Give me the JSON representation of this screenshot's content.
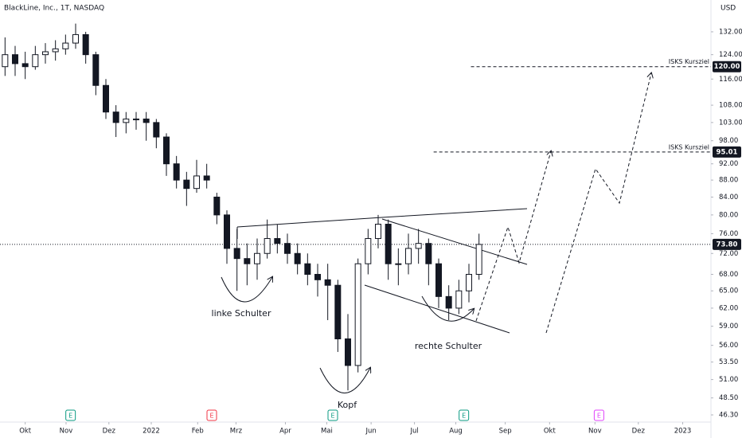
{
  "chart_data": {
    "type": "candlestick",
    "title": "BlackLine, Inc., 1T, NASDAQ",
    "currency": "USD",
    "x": [
      0,
      1,
      2,
      3,
      4,
      5,
      6,
      7,
      8,
      9,
      10,
      11,
      12,
      13,
      14,
      15,
      16,
      17,
      18,
      19,
      20,
      21,
      22,
      23,
      24,
      25,
      26,
      27,
      28,
      29,
      30,
      31,
      32,
      33,
      34,
      35,
      36,
      37,
      38,
      39,
      40,
      41,
      42,
      43,
      44,
      45,
      46,
      47
    ],
    "ohlc": [
      [
        120,
        130,
        117,
        124
      ],
      [
        124,
        127,
        117,
        121
      ],
      [
        121,
        125,
        116,
        120
      ],
      [
        120,
        127,
        119,
        124
      ],
      [
        124,
        128,
        121,
        125
      ],
      [
        125,
        129,
        122,
        126
      ],
      [
        126,
        131,
        124,
        128
      ],
      [
        128,
        135,
        126,
        131
      ],
      [
        131,
        132,
        121,
        124
      ],
      [
        124,
        125,
        111,
        114
      ],
      [
        114,
        116,
        104,
        106
      ],
      [
        106,
        108,
        99,
        103
      ],
      [
        103,
        106,
        100,
        104
      ],
      [
        104,
        106,
        101,
        104
      ],
      [
        104,
        106,
        98,
        103
      ],
      [
        103,
        104,
        96,
        99
      ],
      [
        99,
        100,
        89,
        92
      ],
      [
        92,
        94,
        86,
        88
      ],
      [
        88,
        90,
        82,
        86
      ],
      [
        86,
        93,
        85,
        89
      ],
      [
        89,
        92,
        86,
        88
      ],
      [
        84,
        85,
        78,
        80
      ],
      [
        80,
        81,
        70,
        73
      ],
      [
        73,
        77,
        65,
        71
      ],
      [
        71,
        74,
        66,
        70
      ],
      [
        70,
        75,
        67,
        72
      ],
      [
        72,
        79,
        71,
        75
      ],
      [
        75,
        78,
        72,
        74
      ],
      [
        74,
        76,
        70,
        72
      ],
      [
        72,
        74,
        68,
        70
      ],
      [
        70,
        72,
        66,
        68
      ],
      [
        68,
        70,
        64,
        67
      ],
      [
        67,
        70,
        60,
        66
      ],
      [
        66,
        67,
        55,
        57
      ],
      [
        57,
        61,
        49.5,
        53
      ],
      [
        53,
        71,
        52,
        70
      ],
      [
        70,
        77,
        68,
        75
      ],
      [
        75,
        80,
        73,
        78
      ],
      [
        78,
        79,
        67,
        70
      ],
      [
        70,
        73,
        66,
        70
      ],
      [
        70,
        76,
        68,
        73
      ],
      [
        73,
        77,
        70,
        74
      ],
      [
        74,
        75,
        66,
        70
      ],
      [
        70,
        71,
        62,
        64
      ],
      [
        64,
        66,
        60,
        62
      ],
      [
        62,
        67,
        61,
        65
      ],
      [
        65,
        70,
        63,
        68
      ],
      [
        68,
        76,
        67,
        73.8
      ]
    ],
    "up_color": "#ffffff",
    "down_color": "#131722",
    "edge_color": "#131722",
    "log_scale": true,
    "xlim": [
      -0.5,
      70
    ],
    "ylim": [
      45.4,
      144
    ],
    "xticks": [
      {
        "value": 2.0,
        "label": "Okt"
      },
      {
        "value": 6.05,
        "label": "Nov"
      },
      {
        "value": 10.3,
        "label": "Dez"
      },
      {
        "value": 14.5,
        "label": "2022"
      },
      {
        "value": 19.1,
        "label": "Feb"
      },
      {
        "value": 22.9,
        "label": "Mrz"
      },
      {
        "value": 27.8,
        "label": "Apr"
      },
      {
        "value": 31.9,
        "label": "Mai"
      },
      {
        "value": 36.3,
        "label": "Jun"
      },
      {
        "value": 40.6,
        "label": "Jul"
      },
      {
        "value": 44.7,
        "label": "Aug"
      },
      {
        "value": 49.6,
        "label": "Sep"
      },
      {
        "value": 54.0,
        "label": "Okt"
      },
      {
        "value": 58.5,
        "label": "Nov"
      },
      {
        "value": 62.8,
        "label": "Dez"
      },
      {
        "value": 67.2,
        "label": "2023"
      }
    ],
    "yticks": [
      {
        "value": 132,
        "label": "132.00"
      },
      {
        "value": 124,
        "label": "124.00"
      },
      {
        "value": 116,
        "label": "116.00"
      },
      {
        "value": 108,
        "label": "108.00"
      },
      {
        "value": 103,
        "label": "103.00"
      },
      {
        "value": 98,
        "label": "98.00"
      },
      {
        "value": 92,
        "label": "92.00"
      },
      {
        "value": 88,
        "label": "88.00"
      },
      {
        "value": 84,
        "label": "84.00"
      },
      {
        "value": 80,
        "label": "80.00"
      },
      {
        "value": 76,
        "label": "76.00"
      },
      {
        "value": 72,
        "label": "72.00"
      },
      {
        "value": 68,
        "label": "68.00"
      },
      {
        "value": 65,
        "label": "65.00"
      },
      {
        "value": 62,
        "label": "62.00"
      },
      {
        "value": 59,
        "label": "59.00"
      },
      {
        "value": 56,
        "label": "56.00"
      },
      {
        "value": 53.5,
        "label": "53.50"
      },
      {
        "value": 51,
        "label": "51.00"
      },
      {
        "value": 48.5,
        "label": "48.50"
      },
      {
        "value": 46.3,
        "label": "46.30"
      }
    ],
    "current_price": {
      "value": 73.8,
      "label": "73.80"
    },
    "targets": [
      {
        "value": 120,
        "label": "120.00",
        "name": "ISKS Kursziel",
        "start": 46.2
      },
      {
        "value": 95.01,
        "label": "95.01",
        "name": "ISKS Kursziel",
        "start": 42.5
      }
    ],
    "events": [
      {
        "x": 6.5,
        "label": "E",
        "color": "#089981"
      },
      {
        "x": 20.5,
        "label": "E",
        "color": "#f23645"
      },
      {
        "x": 32.5,
        "label": "E",
        "color": "#089981"
      },
      {
        "x": 45.5,
        "label": "E",
        "color": "#089981"
      },
      {
        "x": 58.9,
        "label": "E",
        "color": "#e040fb"
      }
    ],
    "annotations": [
      "linke Schulter",
      "Kopf",
      "rechte Schulter"
    ]
  }
}
